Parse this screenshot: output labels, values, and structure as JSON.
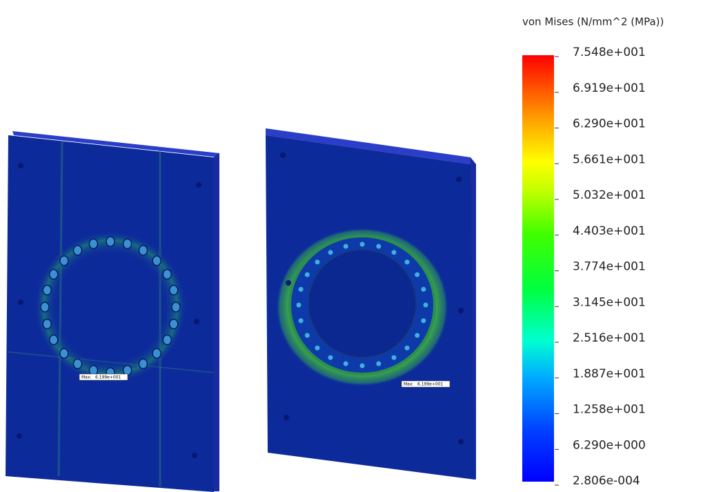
{
  "legend": {
    "title": "von Mises (N/mm^2 (MPa))",
    "ticks": [
      "7.548e+001",
      "6.919e+001",
      "6.290e+001",
      "5.661e+001",
      "5.032e+001",
      "4.403e+001",
      "3.774e+001",
      "3.145e+001",
      "2.516e+001",
      "1.887e+001",
      "1.258e+001",
      "6.290e+000",
      "2.806e-004"
    ]
  },
  "plates": [
    {
      "max_label": "Max:",
      "max_value": "6.199e+001"
    },
    {
      "max_label": "Max:",
      "max_value": "6.199e+001"
    }
  ]
}
